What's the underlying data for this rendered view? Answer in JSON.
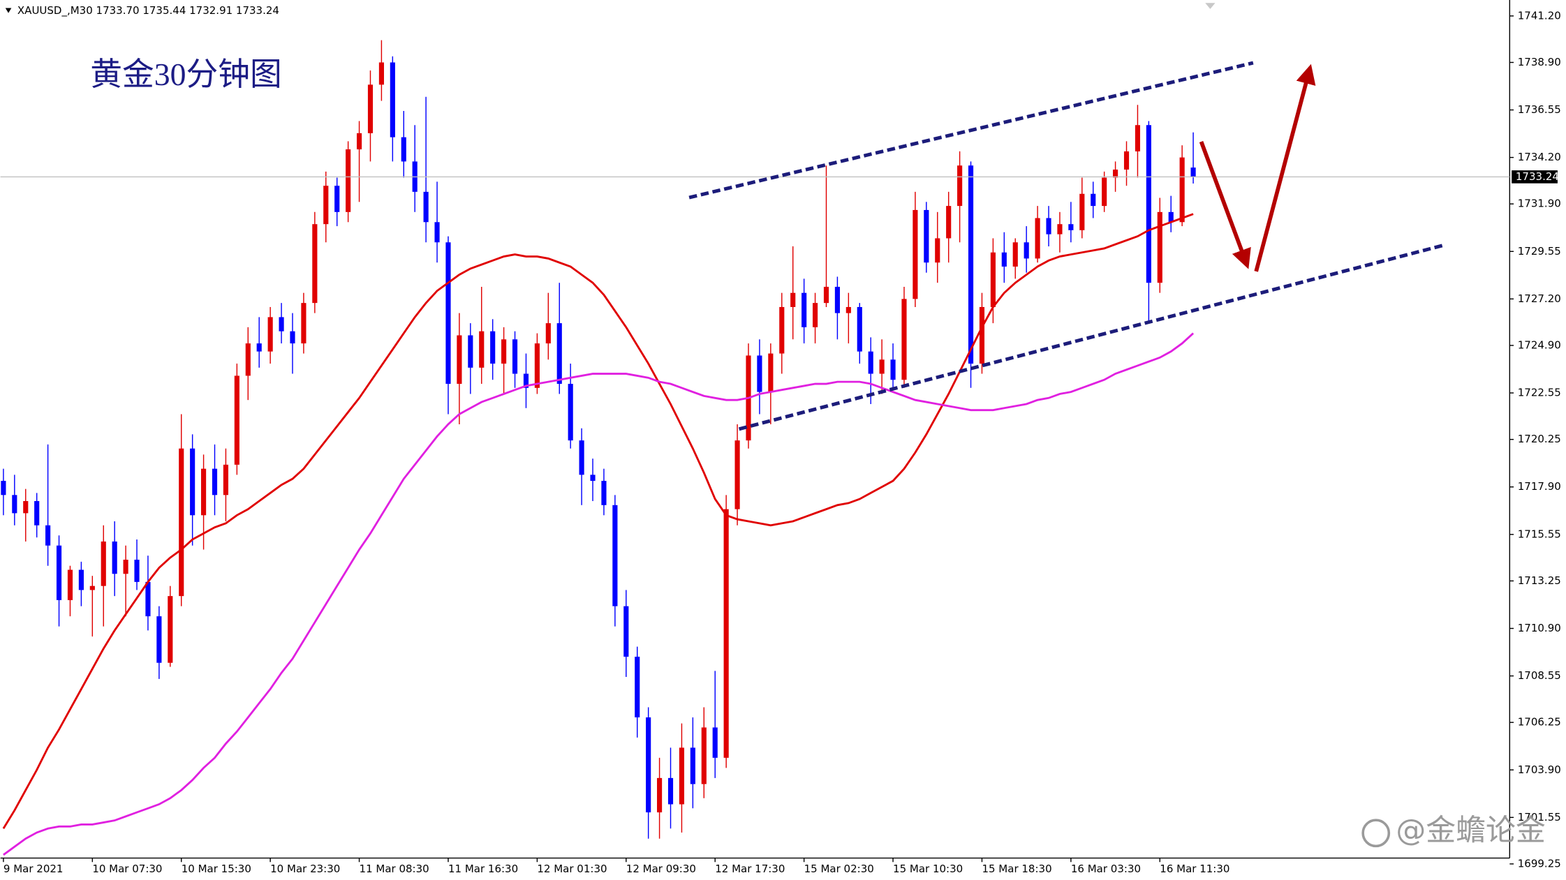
{
  "chart_data": {
    "type": "candlestick",
    "title": "XAUUSD_,M30  1733.70 1735.44 1732.91 1733.24",
    "annotation": "黄金30分钟图",
    "watermark": "@金蟾论金",
    "up_color": "#e00000",
    "down_color": "#0000ff",
    "last_price_line": true,
    "categories": [
      "9 Mar 2021",
      null,
      null,
      null,
      null,
      null,
      null,
      null,
      "10 Mar 07:30",
      null,
      null,
      null,
      null,
      null,
      null,
      null,
      "10 Mar 15:30",
      null,
      null,
      null,
      null,
      null,
      null,
      null,
      "10 Mar 23:30",
      null,
      null,
      null,
      null,
      null,
      null,
      null,
      "11 Mar 08:30",
      null,
      null,
      null,
      null,
      null,
      null,
      null,
      "11 Mar 16:30",
      null,
      null,
      null,
      null,
      null,
      null,
      null,
      "12 Mar 01:30",
      null,
      null,
      null,
      null,
      null,
      null,
      null,
      "12 Mar 09:30",
      null,
      null,
      null,
      null,
      null,
      null,
      null,
      "12 Mar 17:30",
      null,
      null,
      null,
      null,
      null,
      null,
      null,
      "15 Mar 02:30",
      null,
      null,
      null,
      null,
      null,
      null,
      null,
      "15 Mar 10:30",
      null,
      null,
      null,
      null,
      null,
      null,
      null,
      "15 Mar 18:30",
      null,
      null,
      null,
      null,
      null,
      null,
      null,
      "16 Mar 03:30",
      null,
      null,
      null,
      null,
      null,
      null,
      null,
      "16 Mar 11:30",
      null,
      null,
      null
    ],
    "open": [
      1718.2,
      1717.5,
      1716.6,
      1717.2,
      1716.0,
      1715.0,
      1712.3,
      1713.8,
      1712.8,
      1713.0,
      1715.2,
      1713.6,
      1714.3,
      1713.2,
      1711.5,
      1709.2,
      1712.5,
      1719.8,
      1716.5,
      1718.8,
      1717.5,
      1719.0,
      1723.4,
      1725.0,
      1724.6,
      1726.3,
      1725.6,
      1725.0,
      1727.0,
      1730.9,
      1732.8,
      1731.5,
      1734.6,
      1735.4,
      1737.8,
      1738.9,
      1735.2,
      1734.0,
      1732.5,
      1731.0,
      1730.0,
      1723.0,
      1725.4,
      1723.8,
      1725.6,
      1724.0,
      1725.2,
      1723.5,
      1722.8,
      1725.0,
      1726.0,
      1723.0,
      1720.2,
      1718.5,
      1718.2,
      1717.0,
      1712.0,
      1709.5,
      1706.5,
      1701.8,
      1703.5,
      1702.2,
      1705.0,
      1703.2,
      1706.0,
      1704.5,
      1716.8,
      1720.2,
      1724.4,
      1722.6,
      1724.5,
      1726.8,
      1727.5,
      1725.8,
      1727.0,
      1727.8,
      1726.5,
      1726.8,
      1724.6,
      1723.5,
      1724.2,
      1723.2,
      1727.2,
      1731.6,
      1729.0,
      1730.2,
      1731.8,
      1733.8,
      1724.0,
      1726.8,
      1729.5,
      1728.8,
      1730.0,
      1729.2,
      1731.2,
      1730.4,
      1730.9,
      1730.6,
      1732.4,
      1731.8,
      1733.2,
      1733.6,
      1734.5,
      1735.8,
      1728.0,
      1731.5,
      1731.0,
      1733.7
    ],
    "high": [
      1718.8,
      1718.5,
      1717.8,
      1717.6,
      1720.0,
      1715.5,
      1714.0,
      1714.2,
      1713.5,
      1716.0,
      1716.2,
      1715.0,
      1715.3,
      1714.5,
      1712.0,
      1713.0,
      1721.5,
      1720.5,
      1719.5,
      1720.0,
      1719.8,
      1724.0,
      1725.8,
      1726.3,
      1726.8,
      1727.0,
      1726.5,
      1727.5,
      1731.5,
      1733.5,
      1733.2,
      1735.0,
      1736.0,
      1738.5,
      1740.0,
      1739.2,
      1736.5,
      1735.8,
      1737.2,
      1733.0,
      1730.3,
      1726.5,
      1726.0,
      1727.8,
      1726.2,
      1725.8,
      1725.6,
      1724.5,
      1725.5,
      1727.5,
      1728.0,
      1724.0,
      1720.8,
      1719.3,
      1718.8,
      1717.5,
      1712.8,
      1710.0,
      1707.0,
      1704.5,
      1705.0,
      1706.2,
      1706.5,
      1707.0,
      1708.8,
      1717.5,
      1721.0,
      1725.0,
      1725.2,
      1725.0,
      1727.5,
      1729.8,
      1728.2,
      1727.5,
      1733.8,
      1728.3,
      1727.5,
      1727.0,
      1725.3,
      1725.2,
      1725.0,
      1727.8,
      1732.5,
      1732.0,
      1731.5,
      1732.5,
      1734.5,
      1734.0,
      1727.5,
      1730.2,
      1730.5,
      1730.2,
      1730.8,
      1731.8,
      1731.8,
      1731.5,
      1732.0,
      1733.2,
      1733.0,
      1733.5,
      1734.0,
      1735.0,
      1736.8,
      1736.0,
      1732.2,
      1732.3,
      1734.8,
      1735.44
    ],
    "low": [
      1716.5,
      1716.0,
      1715.2,
      1715.4,
      1714.0,
      1711.0,
      1711.5,
      1712.0,
      1710.5,
      1711.0,
      1712.5,
      1711.5,
      1712.8,
      1710.8,
      1708.4,
      1709.0,
      1712.0,
      1715.0,
      1714.8,
      1716.5,
      1716.2,
      1718.5,
      1722.2,
      1723.8,
      1724.0,
      1725.0,
      1723.5,
      1724.5,
      1726.5,
      1730.0,
      1730.8,
      1731.0,
      1732.0,
      1734.0,
      1737.0,
      1734.0,
      1733.2,
      1731.5,
      1730.0,
      1729.0,
      1721.5,
      1721.0,
      1722.5,
      1723.0,
      1723.2,
      1722.5,
      1722.8,
      1721.8,
      1722.5,
      1724.2,
      1722.5,
      1719.8,
      1717.0,
      1717.2,
      1716.5,
      1711.0,
      1708.5,
      1705.5,
      1700.5,
      1700.5,
      1701.0,
      1700.8,
      1702.0,
      1702.5,
      1703.5,
      1704.0,
      1716.0,
      1719.8,
      1721.5,
      1721.0,
      1723.5,
      1725.2,
      1725.0,
      1725.0,
      1726.8,
      1725.2,
      1725.0,
      1724.0,
      1722.0,
      1722.5,
      1722.8,
      1722.8,
      1726.8,
      1728.5,
      1728.0,
      1729.0,
      1730.0,
      1722.8,
      1723.5,
      1726.0,
      1728.0,
      1728.2,
      1728.5,
      1729.0,
      1729.8,
      1729.5,
      1730.0,
      1730.2,
      1731.2,
      1731.5,
      1732.5,
      1732.8,
      1733.2,
      1726.0,
      1727.5,
      1730.5,
      1730.8,
      1732.91
    ],
    "close": [
      1717.5,
      1716.6,
      1717.2,
      1716.0,
      1715.0,
      1712.3,
      1713.8,
      1712.8,
      1713.0,
      1715.2,
      1713.6,
      1714.3,
      1713.2,
      1711.5,
      1709.2,
      1712.5,
      1719.8,
      1716.5,
      1718.8,
      1717.5,
      1719.0,
      1723.4,
      1725.0,
      1724.6,
      1726.3,
      1725.6,
      1725.0,
      1727.0,
      1730.9,
      1732.8,
      1731.5,
      1734.6,
      1735.4,
      1737.8,
      1738.9,
      1735.2,
      1734.0,
      1732.5,
      1731.0,
      1730.0,
      1723.0,
      1725.4,
      1723.8,
      1725.6,
      1724.0,
      1725.2,
      1723.5,
      1722.8,
      1725.0,
      1726.0,
      1723.0,
      1720.2,
      1718.5,
      1718.2,
      1717.0,
      1712.0,
      1709.5,
      1706.5,
      1701.8,
      1703.5,
      1702.2,
      1705.0,
      1703.2,
      1706.0,
      1704.5,
      1716.8,
      1720.2,
      1724.4,
      1722.6,
      1724.5,
      1726.8,
      1727.5,
      1725.8,
      1727.0,
      1727.8,
      1726.5,
      1726.8,
      1724.6,
      1723.5,
      1724.2,
      1723.2,
      1727.2,
      1731.6,
      1729.0,
      1730.2,
      1731.8,
      1733.8,
      1724.0,
      1726.8,
      1729.5,
      1728.8,
      1730.0,
      1729.2,
      1731.2,
      1730.4,
      1730.9,
      1730.6,
      1732.4,
      1731.8,
      1733.2,
      1733.6,
      1734.5,
      1735.8,
      1728.0,
      1731.5,
      1731.0,
      1734.2,
      1733.24
    ],
    "moving_averages": [
      {
        "color": "#e00000",
        "values": [
          1701.0,
          1701.9,
          1702.9,
          1703.9,
          1705.0,
          1705.9,
          1706.9,
          1707.9,
          1708.9,
          1709.9,
          1710.8,
          1711.6,
          1712.4,
          1713.2,
          1713.9,
          1714.4,
          1714.8,
          1715.3,
          1715.6,
          1715.9,
          1716.1,
          1716.5,
          1716.8,
          1717.2,
          1717.6,
          1718.0,
          1718.3,
          1718.8,
          1719.5,
          1720.2,
          1720.9,
          1721.6,
          1722.3,
          1723.1,
          1723.9,
          1724.7,
          1725.5,
          1726.3,
          1727.0,
          1727.6,
          1728.0,
          1728.4,
          1728.7,
          1728.9,
          1729.1,
          1729.3,
          1729.4,
          1729.3,
          1729.3,
          1729.2,
          1729.0,
          1728.8,
          1728.4,
          1728.0,
          1727.4,
          1726.6,
          1725.8,
          1724.9,
          1724.0,
          1723.0,
          1722.0,
          1720.9,
          1719.8,
          1718.6,
          1717.3,
          1716.5,
          1716.3,
          1716.2,
          1716.1,
          1716.0,
          1716.1,
          1716.2,
          1716.4,
          1716.6,
          1716.8,
          1717.0,
          1717.1,
          1717.3,
          1717.6,
          1717.9,
          1718.2,
          1718.8,
          1719.6,
          1720.5,
          1721.5,
          1722.5,
          1723.6,
          1724.7,
          1725.8,
          1726.8,
          1727.5,
          1728.0,
          1728.4,
          1728.8,
          1729.1,
          1729.3,
          1729.4,
          1729.5,
          1729.6,
          1729.7,
          1729.9,
          1730.1,
          1730.3,
          1730.6,
          1730.8,
          1731.0,
          1731.2,
          1731.4
        ]
      },
      {
        "color": "#e020e0",
        "values": [
          1699.7,
          1700.1,
          1700.5,
          1700.8,
          1701.0,
          1701.1,
          1701.1,
          1701.2,
          1701.2,
          1701.3,
          1701.4,
          1701.6,
          1701.8,
          1702.0,
          1702.2,
          1702.5,
          1702.9,
          1703.4,
          1704.0,
          1704.5,
          1705.2,
          1705.8,
          1706.5,
          1707.2,
          1707.9,
          1708.7,
          1709.4,
          1710.3,
          1711.2,
          1712.1,
          1713.0,
          1713.9,
          1714.8,
          1715.6,
          1716.5,
          1717.4,
          1718.3,
          1719.0,
          1719.7,
          1720.4,
          1721.0,
          1721.5,
          1721.8,
          1722.1,
          1722.3,
          1722.5,
          1722.7,
          1722.9,
          1723.0,
          1723.1,
          1723.2,
          1723.3,
          1723.4,
          1723.5,
          1723.5,
          1723.5,
          1723.5,
          1723.4,
          1723.3,
          1723.1,
          1723.0,
          1722.8,
          1722.6,
          1722.4,
          1722.3,
          1722.2,
          1722.2,
          1722.3,
          1722.5,
          1722.6,
          1722.7,
          1722.8,
          1722.9,
          1723.0,
          1723.0,
          1723.1,
          1723.1,
          1723.1,
          1723.0,
          1722.8,
          1722.6,
          1722.4,
          1722.2,
          1722.1,
          1722.0,
          1721.9,
          1721.8,
          1721.7,
          1721.7,
          1721.7,
          1721.8,
          1721.9,
          1722.0,
          1722.2,
          1722.3,
          1722.5,
          1722.6,
          1722.8,
          1723.0,
          1723.2,
          1723.5,
          1723.7,
          1723.9,
          1724.1,
          1724.3,
          1724.6,
          1725.0,
          1725.5
        ]
      }
    ],
    "ylim": [
      1699.54,
      1741.89
    ],
    "yticks": [
      {
        "value": 1741.2,
        "label": "1741.20"
      },
      {
        "value": 1738.9,
        "label": "1738.90"
      },
      {
        "value": 1736.55,
        "label": "1736.55"
      },
      {
        "value": 1734.2,
        "label": "1734.20"
      },
      {
        "value": 1731.9,
        "label": "1731.90"
      },
      {
        "value": 1729.55,
        "label": "1729.55"
      },
      {
        "value": 1727.2,
        "label": "1727.20"
      },
      {
        "value": 1724.9,
        "label": "1724.90"
      },
      {
        "value": 1722.55,
        "label": "1722.55"
      },
      {
        "value": 1720.25,
        "label": "1720.25"
      },
      {
        "value": 1717.9,
        "label": "1717.90"
      },
      {
        "value": 1715.55,
        "label": "1715.55"
      },
      {
        "value": 1713.25,
        "label": "1713.25"
      },
      {
        "value": 1710.9,
        "label": "1710.90"
      },
      {
        "value": 1708.55,
        "label": "1708.55"
      },
      {
        "value": 1706.25,
        "label": "1706.25"
      },
      {
        "value": 1703.9,
        "label": "1703.90"
      },
      {
        "value": 1701.55,
        "label": "1701.55"
      },
      {
        "value": 1699.25,
        "label": "1699.25"
      }
    ]
  }
}
